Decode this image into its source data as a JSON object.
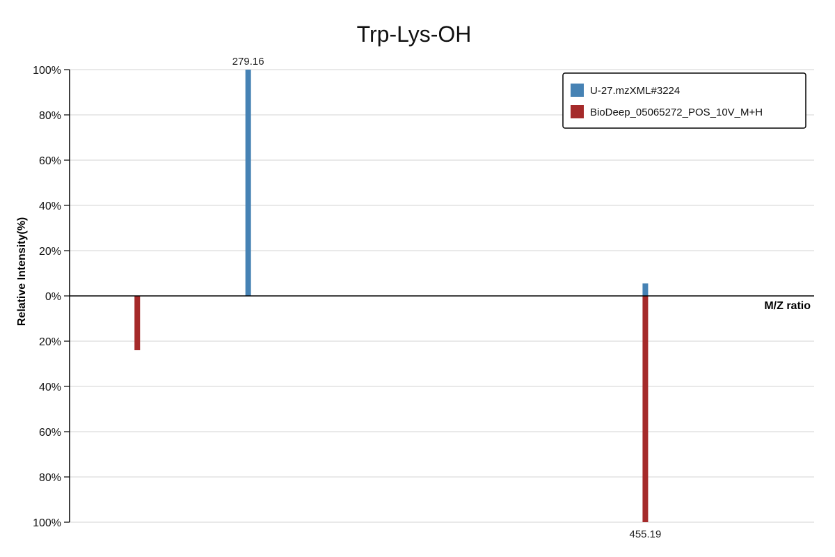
{
  "chart_data": {
    "type": "bar",
    "title": "Trp-Lys-OH",
    "xlabel": "M/Z ratio",
    "ylabel": "Relative Intensity(%)",
    "ylim": [
      -100,
      100
    ],
    "yticks": [
      100,
      80,
      60,
      40,
      20,
      0,
      -20,
      -40,
      -60,
      -80,
      -100
    ],
    "ytick_labels": [
      "100%",
      "80%",
      "60%",
      "40%",
      "20%",
      "0%",
      "20%",
      "40%",
      "60%",
      "80%",
      "100%"
    ],
    "xlim": [
      200,
      530
    ],
    "grid": true,
    "legend_position": "top-right",
    "series": [
      {
        "name": "U-27.mzXML#3224",
        "color": "#4682b4",
        "direction": "up",
        "peaks": [
          {
            "mz": 279.16,
            "intensity": 100,
            "label": "279.16"
          },
          {
            "mz": 455.19,
            "intensity": 5.5
          }
        ]
      },
      {
        "name": "BioDeep_05065272_POS_10V_M+H",
        "color": "#a52a2a",
        "direction": "down",
        "peaks": [
          {
            "mz": 230.0,
            "intensity": 24
          },
          {
            "mz": 455.19,
            "intensity": 100,
            "label": "455.19"
          }
        ]
      }
    ]
  }
}
